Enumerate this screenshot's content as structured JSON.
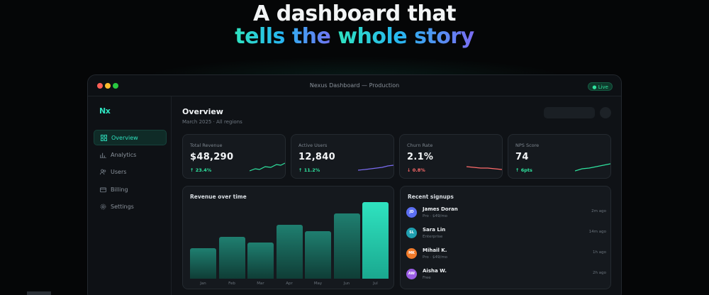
{
  "hero": {
    "line1": "A dashboard that",
    "line2_a": "tells the ",
    "line2_b": "whole story"
  },
  "window": {
    "title": "Nexus Dashboard — Production",
    "live_badge": "● Live"
  },
  "sidebar": {
    "logo": "Nx",
    "items": [
      {
        "label": "Overview",
        "icon": "grid-icon",
        "active": true
      },
      {
        "label": "Analytics",
        "icon": "bar-chart-icon",
        "active": false
      },
      {
        "label": "Users",
        "icon": "users-icon",
        "active": false
      },
      {
        "label": "Billing",
        "icon": "card-icon",
        "active": false
      },
      {
        "label": "Settings",
        "icon": "gear-icon",
        "active": false
      }
    ]
  },
  "header": {
    "title": "Overview",
    "subtitle": "March 2025 · All regions"
  },
  "kpis": [
    {
      "label": "Total Revenue",
      "value": "$48,290",
      "delta": "↑ 23.4%",
      "trend": "up",
      "color": "#2fe39f"
    },
    {
      "label": "Active Users",
      "value": "12,840",
      "delta": "↑ 11.2%",
      "trend": "up",
      "color": "#7b6cf2"
    },
    {
      "label": "Churn Rate",
      "value": "2.1%",
      "delta": "↓ 0.8%",
      "trend": "down",
      "color": "#ff6b6b"
    },
    {
      "label": "NPS Score",
      "value": "74",
      "delta": "↑ 6pts",
      "trend": "up",
      "color": "#2fe39f"
    }
  ],
  "revenue_panel": {
    "title": "Revenue over time"
  },
  "chart_data": {
    "type": "bar",
    "categories": [
      "Jan",
      "Feb",
      "Mar",
      "Apr",
      "May",
      "Jun",
      "Jul"
    ],
    "values": [
      40,
      55,
      47,
      70,
      62,
      85,
      100
    ],
    "ylim": [
      0,
      100
    ],
    "grid": false,
    "colors": {
      "base": "#1a6b5f",
      "highlight": "#2fe3c0"
    }
  },
  "signups_panel": {
    "title": "Recent signups",
    "rows": [
      {
        "initials": "JD",
        "name": "James Doran",
        "plan": "Pro · $49/mo",
        "time": "2m ago",
        "color": "#5b6ef2"
      },
      {
        "initials": "SL",
        "name": "Sara Lin",
        "plan": "Enterprise",
        "time": "14m ago",
        "color": "#1f9fb0"
      },
      {
        "initials": "MK",
        "name": "Mihail K.",
        "plan": "Pro · $49/mo",
        "time": "1h ago",
        "color": "#f07a2a"
      },
      {
        "initials": "AW",
        "name": "Aisha W.",
        "plan": "Free",
        "time": "2h ago",
        "color": "#9b5de5"
      }
    ]
  }
}
